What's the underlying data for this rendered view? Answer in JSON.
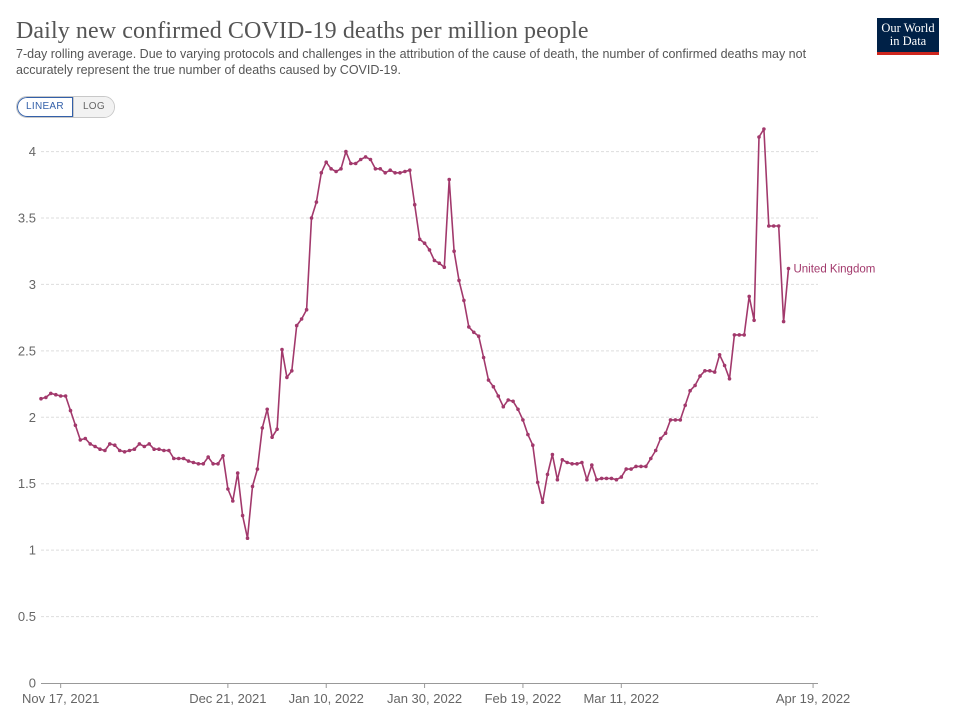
{
  "header": {
    "title": "Daily new confirmed COVID-19 deaths per million people",
    "subtitle": "7-day rolling average. Due to varying protocols and challenges in the attribution of the cause of death, the number of confirmed deaths may not accurately represent the true number of deaths caused by COVID-19."
  },
  "logo": {
    "line1": "Our World",
    "line2": "in Data"
  },
  "scale_toggle": {
    "linear_label": "LINEAR",
    "log_label": "LOG",
    "selected": "LINEAR"
  },
  "colors": {
    "series": "#a2396c",
    "grid": "#dddddd",
    "axis": "#999999"
  },
  "chart_data": {
    "type": "line",
    "x_start": "2021-11-13",
    "x_end": "2022-04-20",
    "xlim": [
      "2021-11-13",
      "2022-04-20"
    ],
    "ylim": [
      0,
      4.2
    ],
    "grid": true,
    "y_ticks": [
      "0",
      "0.5",
      "1",
      "1.5",
      "2",
      "2.5",
      "3",
      "3.5",
      "4"
    ],
    "x_ticks": [
      {
        "date": "2021-11-17",
        "label": "Nov 17, 2021"
      },
      {
        "date": "2021-12-21",
        "label": "Dec 21, 2021"
      },
      {
        "date": "2022-01-10",
        "label": "Jan 10, 2022"
      },
      {
        "date": "2022-01-30",
        "label": "Jan 30, 2022"
      },
      {
        "date": "2022-02-19",
        "label": "Feb 19, 2022"
      },
      {
        "date": "2022-03-11",
        "label": "Mar 11, 2022"
      },
      {
        "date": "2022-04-19",
        "label": "Apr 19, 2022"
      }
    ],
    "series": [
      {
        "name": "United Kingdom",
        "values": [
          2.14,
          2.15,
          2.18,
          2.17,
          2.16,
          2.16,
          2.05,
          1.94,
          1.83,
          1.84,
          1.8,
          1.78,
          1.76,
          1.75,
          1.8,
          1.79,
          1.75,
          1.74,
          1.75,
          1.76,
          1.8,
          1.78,
          1.8,
          1.76,
          1.76,
          1.75,
          1.75,
          1.69,
          1.69,
          1.69,
          1.67,
          1.66,
          1.65,
          1.65,
          1.7,
          1.65,
          1.65,
          1.71,
          1.46,
          1.37,
          1.58,
          1.26,
          1.09,
          1.48,
          1.61,
          1.92,
          2.06,
          1.85,
          1.91,
          2.51,
          2.3,
          2.35,
          2.69,
          2.74,
          2.81,
          3.5,
          3.62,
          3.84,
          3.92,
          3.87,
          3.85,
          3.87,
          4.0,
          3.91,
          3.91,
          3.94,
          3.96,
          3.94,
          3.87,
          3.87,
          3.84,
          3.86,
          3.84,
          3.84,
          3.85,
          3.86,
          3.6,
          3.34,
          3.31,
          3.26,
          3.18,
          3.16,
          3.13,
          3.79,
          3.25,
          3.03,
          2.88,
          2.68,
          2.64,
          2.61,
          2.45,
          2.28,
          2.23,
          2.16,
          2.08,
          2.13,
          2.12,
          2.06,
          1.98,
          1.87,
          1.79,
          1.51,
          1.36,
          1.57,
          1.72,
          1.53,
          1.68,
          1.66,
          1.65,
          1.65,
          1.66,
          1.53,
          1.64,
          1.53,
          1.54,
          1.54,
          1.54,
          1.53,
          1.55,
          1.61,
          1.61,
          1.63,
          1.63,
          1.63,
          1.69,
          1.75,
          1.84,
          1.88,
          1.98,
          1.98,
          1.98,
          2.09,
          2.2,
          2.24,
          2.31,
          2.35,
          2.35,
          2.34,
          2.47,
          2.39,
          2.29,
          2.62,
          2.62,
          2.62,
          2.91,
          2.73,
          4.11,
          4.17,
          3.44,
          3.44,
          3.44,
          2.72,
          3.12
        ]
      }
    ]
  }
}
